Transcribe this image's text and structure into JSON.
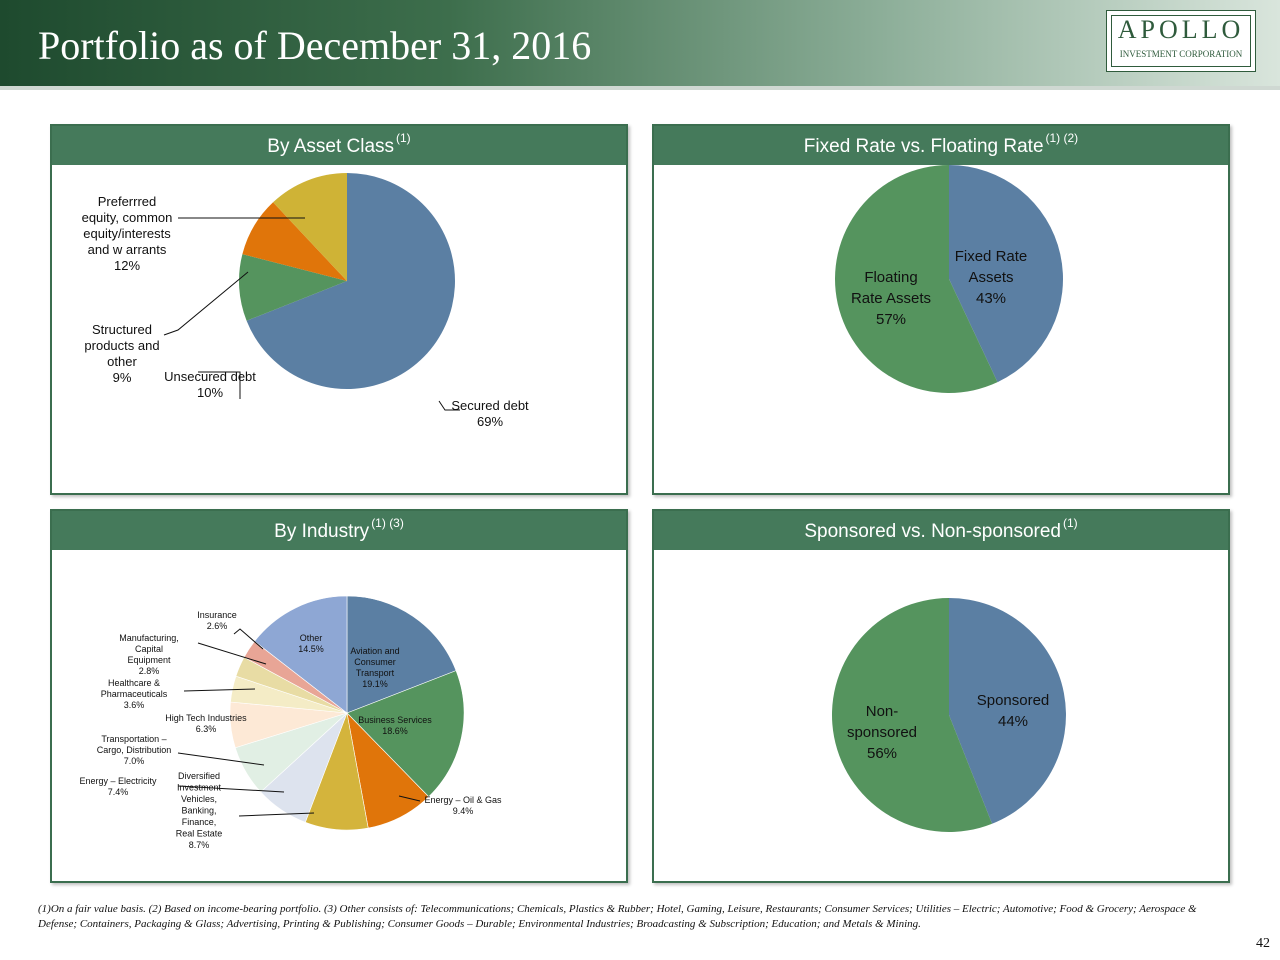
{
  "page": {
    "title": "Portfolio as of December 31, 2016",
    "logo_main": "APOLLO",
    "logo_sub": "INVESTMENT CORPORATION",
    "footnote": "(1)On a fair value basis. (2) Based on income-bearing portfolio. (3) Other consists of: Telecommunications; Chemicals, Plastics & Rubber; Hotel, Gaming, Leisure, Restaurants; Consumer Services; Utilities – Electric; Automotive; Food & Grocery; Aerospace & Defense; Containers, Packaging & Glass; Advertising, Printing & Publishing; Consumer Goods – Durable; Environmental Industries; Broadcasting & Subscription; Education; and Metals & Mining.",
    "page_number": "42"
  },
  "panels": {
    "asset_class": {
      "title": "By Asset Class",
      "note": "(1)"
    },
    "fixed_floating": {
      "title": "Fixed Rate vs. Floating Rate",
      "note": "(1) (2)"
    },
    "industry": {
      "title": "By Industry",
      "note": "(1) (3)"
    },
    "sponsored": {
      "title": "Sponsored vs. Non-sponsored",
      "note": "(1)"
    }
  },
  "chart_data": [
    {
      "type": "pie",
      "title": "By Asset Class",
      "slices": [
        {
          "label": "Secured debt",
          "value": 69,
          "color": "#5b7fa3",
          "label_lines": [
            "Secured debt",
            "69%"
          ]
        },
        {
          "label": "Unsecured debt",
          "value": 10,
          "color": "#55945e",
          "label_lines": [
            "Unsecured debt",
            "10%"
          ]
        },
        {
          "label": "Structured products and other",
          "value": 9,
          "color": "#e0750a",
          "label_lines": [
            "Structured",
            "products and",
            "other",
            "9%"
          ]
        },
        {
          "label": "Preferrred equity, common equity/interests and w arrants",
          "value": 12,
          "color": "#cfb336",
          "label_lines": [
            "Preferrred",
            "equity, common",
            "equity/interests",
            "and w arrants",
            "12%"
          ]
        }
      ]
    },
    {
      "type": "pie",
      "title": "Fixed Rate vs. Floating Rate",
      "slices": [
        {
          "label": "Fixed Rate Assets",
          "value": 43,
          "color": "#5b7fa3",
          "label_lines": [
            "Fixed Rate",
            "Assets",
            "43%"
          ]
        },
        {
          "label": "Floating Rate Assets",
          "value": 57,
          "color": "#55945e",
          "label_lines": [
            "Floating",
            "Rate Assets",
            "57%"
          ]
        }
      ]
    },
    {
      "type": "pie",
      "title": "By Industry",
      "slices": [
        {
          "label": "Aviation and Consumer Transport",
          "value": 19.1,
          "color": "#5b7fa3",
          "label_lines": [
            "Aviation and",
            "Consumer",
            "Transport",
            "19.1%"
          ]
        },
        {
          "label": "Business Services",
          "value": 18.6,
          "color": "#55945e",
          "label_lines": [
            "Business Services",
            "18.6%"
          ]
        },
        {
          "label": "Energy – Oil & Gas",
          "value": 9.4,
          "color": "#e0750a",
          "label_lines": [
            "Energy – Oil & Gas",
            "9.4%"
          ]
        },
        {
          "label": "Diversified Investment Vehicles, Banking, Finance, Real Estate",
          "value": 8.7,
          "color": "#d4b43c",
          "label_lines": [
            "Diversified",
            "Investment",
            "Vehicles,",
            "Banking,",
            "Finance,",
            "Real Estate",
            "8.7%"
          ]
        },
        {
          "label": "Energy – Electricity",
          "value": 7.4,
          "color": "#dde3ee",
          "label_lines": [
            "Energy – Electricity",
            "7.4%"
          ]
        },
        {
          "label": "Transportation – Cargo, Distribution",
          "value": 7.0,
          "color": "#e1efe4",
          "label_lines": [
            "Transportation –",
            "Cargo, Distribution",
            "7.0%"
          ]
        },
        {
          "label": "High Tech Industries",
          "value": 6.3,
          "color": "#fde9d6",
          "label_lines": [
            "High Tech Industries",
            "6.3%"
          ]
        },
        {
          "label": "Healthcare & Pharmaceuticals",
          "value": 3.6,
          "color": "#f4ecc6",
          "label_lines": [
            "Healthcare &",
            "Pharmaceuticals",
            "3.6%"
          ]
        },
        {
          "label": "Manufacturing, Capital Equipment",
          "value": 2.8,
          "color": "#e8dca4",
          "label_lines": [
            "Manufacturing,",
            "Capital",
            "Equipment",
            "2.8%"
          ]
        },
        {
          "label": "Insurance",
          "value": 2.6,
          "color": "#e8a596",
          "label_lines": [
            "Insurance",
            "2.6%"
          ]
        },
        {
          "label": "Other",
          "value": 14.5,
          "color": "#8ea7d4",
          "label_lines": [
            "Other",
            "14.5%"
          ]
        }
      ]
    },
    {
      "type": "pie",
      "title": "Sponsored vs. Non-sponsored",
      "slices": [
        {
          "label": "Sponsored",
          "value": 44,
          "color": "#5b7fa3",
          "label_lines": [
            "Sponsored",
            "44%"
          ]
        },
        {
          "label": "Non-sponsored",
          "value": 56,
          "color": "#55945e",
          "label_lines": [
            "Non-",
            "sponsored",
            "56%"
          ]
        }
      ]
    }
  ]
}
